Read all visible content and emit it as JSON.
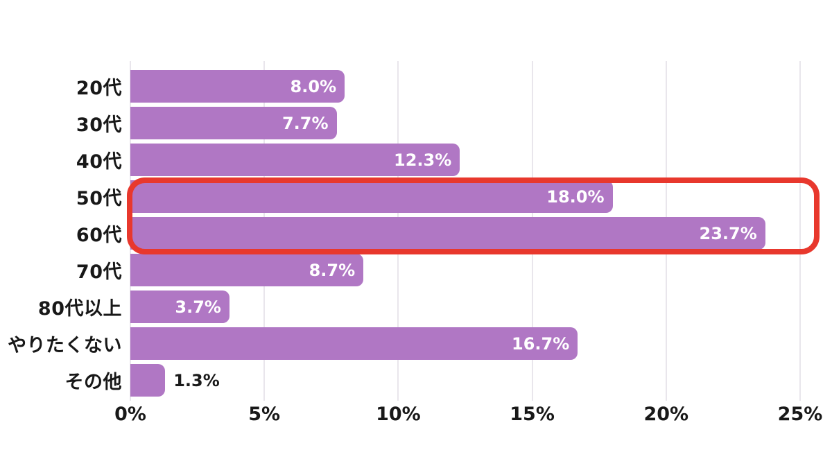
{
  "chart_data": {
    "type": "bar",
    "orientation": "horizontal",
    "title": "",
    "categories": [
      "20代",
      "30代",
      "40代",
      "50代",
      "60代",
      "70代",
      "80代以上",
      "やりたくない",
      "その他"
    ],
    "values": [
      8.0,
      7.7,
      12.3,
      18.0,
      23.7,
      8.7,
      3.7,
      16.7,
      1.3
    ],
    "value_labels": [
      "8.0%",
      "7.7%",
      "12.3%",
      "18.0%",
      "23.7%",
      "8.7%",
      "3.7%",
      "16.7%",
      "1.3%"
    ],
    "x_ticks": [
      {
        "label": "0%",
        "value": 0
      },
      {
        "label": "5%",
        "value": 5
      },
      {
        "label": "10%",
        "value": 10
      },
      {
        "label": "15%",
        "value": 15
      },
      {
        "label": "20%",
        "value": 20
      },
      {
        "label": "25%",
        "value": 25
      }
    ],
    "xlim": [
      0,
      25
    ],
    "grid": true,
    "legend": false,
    "colors": {
      "bar": "#b077c4",
      "value_label_inside": "#ffffff",
      "value_label_outside": "#1a1a1a",
      "gridline": "#e9e6ec",
      "highlight_border": "#e8382d",
      "category_label": "#181818"
    },
    "highlight": {
      "categories": [
        "50代",
        "60代"
      ],
      "note": "red rounded rectangle outline around 50代 and 60代 bars"
    },
    "inside_label_min_value": 3
  }
}
